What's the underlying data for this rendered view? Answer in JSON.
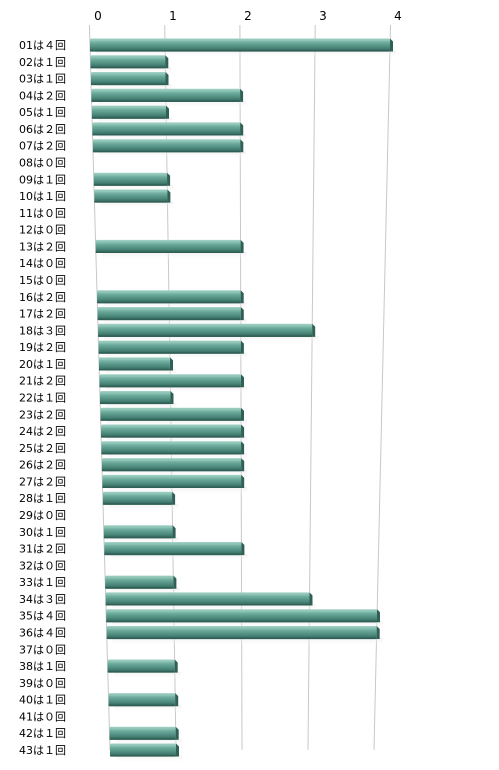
{
  "chart_data": {
    "type": "bar",
    "orientation": "horizontal",
    "title": "",
    "xlabel": "",
    "ylabel": "",
    "xlim": [
      0,
      4
    ],
    "ticks": [
      "0",
      "1",
      "2",
      "3",
      "4"
    ],
    "grid": true,
    "legend": "none",
    "categories": [
      "01は４回",
      "02は１回",
      "03は１回",
      "04は２回",
      "05は１回",
      "06は２回",
      "07は２回",
      "08は０回",
      "09は１回",
      "10は１回",
      "11は０回",
      "12は０回",
      "13は２回",
      "14は０回",
      "15は０回",
      "16は２回",
      "17は２回",
      "18は３回",
      "19は２回",
      "20は１回",
      "21は２回",
      "22は１回",
      "23は２回",
      "24は２回",
      "25は２回",
      "26は２回",
      "27は２回",
      "28は１回",
      "29は０回",
      "30は１回",
      "31は２回",
      "32は０回",
      "33は１回",
      "34は３回",
      "35は４回",
      "36は４回",
      "37は０回",
      "38は１回",
      "39は０回",
      "40は１回",
      "41は０回",
      "42は１回",
      "43は１回"
    ],
    "values": [
      4,
      1,
      1,
      2,
      1,
      2,
      2,
      0,
      1,
      1,
      0,
      0,
      2,
      0,
      0,
      2,
      2,
      3,
      2,
      1,
      2,
      1,
      2,
      2,
      2,
      2,
      2,
      1,
      0,
      1,
      2,
      0,
      1,
      3,
      4,
      4,
      0,
      1,
      0,
      1,
      0,
      1,
      1
    ],
    "colors": {
      "bar_face": "#5a9a8c",
      "bar_top": "#8fc6b8",
      "bar_dark": "#2f5f55",
      "grid": "#c8c8c8"
    }
  }
}
